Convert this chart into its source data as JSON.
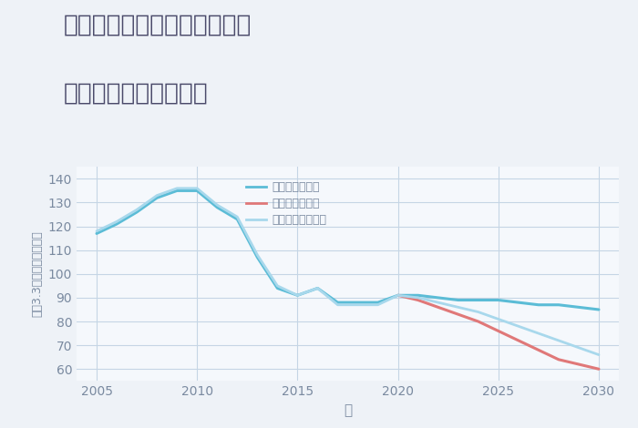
{
  "title_line1": "兵庫県豊岡市出石町田結庄の",
  "title_line2": "中古戸建ての価格推移",
  "xlabel": "年",
  "ylabel": "坪（3.3㎡）単価（万円）",
  "ylim": [
    55,
    145
  ],
  "yticks": [
    60,
    70,
    80,
    90,
    100,
    110,
    120,
    130,
    140
  ],
  "xlim": [
    2004,
    2031
  ],
  "xticks": [
    2005,
    2010,
    2015,
    2020,
    2025,
    2030
  ],
  "bg_color": "#eef2f7",
  "plot_bg_color": "#f5f8fc",
  "grid_color": "#c5d5e5",
  "series": [
    {
      "label": "グッドシナリオ",
      "color": "#5bbcd6",
      "linewidth": 2.2,
      "x": [
        2005,
        2006,
        2007,
        2008,
        2009,
        2010,
        2011,
        2012,
        2013,
        2014,
        2015,
        2016,
        2017,
        2018,
        2019,
        2020,
        2021,
        2022,
        2023,
        2024,
        2025,
        2026,
        2027,
        2028,
        2029,
        2030
      ],
      "y": [
        117,
        121,
        126,
        132,
        135,
        135,
        128,
        123,
        107,
        94,
        91,
        94,
        88,
        88,
        88,
        91,
        91,
        90,
        89,
        89,
        89,
        88,
        87,
        87,
        86,
        85
      ]
    },
    {
      "label": "バッドシナリオ",
      "color": "#e07878",
      "linewidth": 2.2,
      "x": [
        2020,
        2021,
        2022,
        2023,
        2024,
        2025,
        2026,
        2027,
        2028,
        2029,
        2030
      ],
      "y": [
        91,
        89,
        86,
        83,
        80,
        76,
        72,
        68,
        64,
        62,
        60
      ]
    },
    {
      "label": "ノーマルシナリオ",
      "color": "#a8d8ec",
      "linewidth": 2.0,
      "x": [
        2005,
        2006,
        2007,
        2008,
        2009,
        2010,
        2011,
        2012,
        2013,
        2014,
        2015,
        2016,
        2017,
        2018,
        2019,
        2020,
        2021,
        2022,
        2023,
        2024,
        2025,
        2026,
        2027,
        2028,
        2029,
        2030
      ],
      "y": [
        118,
        122,
        127,
        133,
        136,
        136,
        129,
        124,
        108,
        95,
        91,
        94,
        87,
        87,
        87,
        91,
        90,
        88,
        86,
        84,
        81,
        78,
        75,
        72,
        69,
        66
      ]
    }
  ],
  "title_color": "#4a4a6a",
  "axis_color": "#7a8aa0",
  "title_fontsize": 19,
  "tick_fontsize": 10,
  "label_fontsize": 11
}
